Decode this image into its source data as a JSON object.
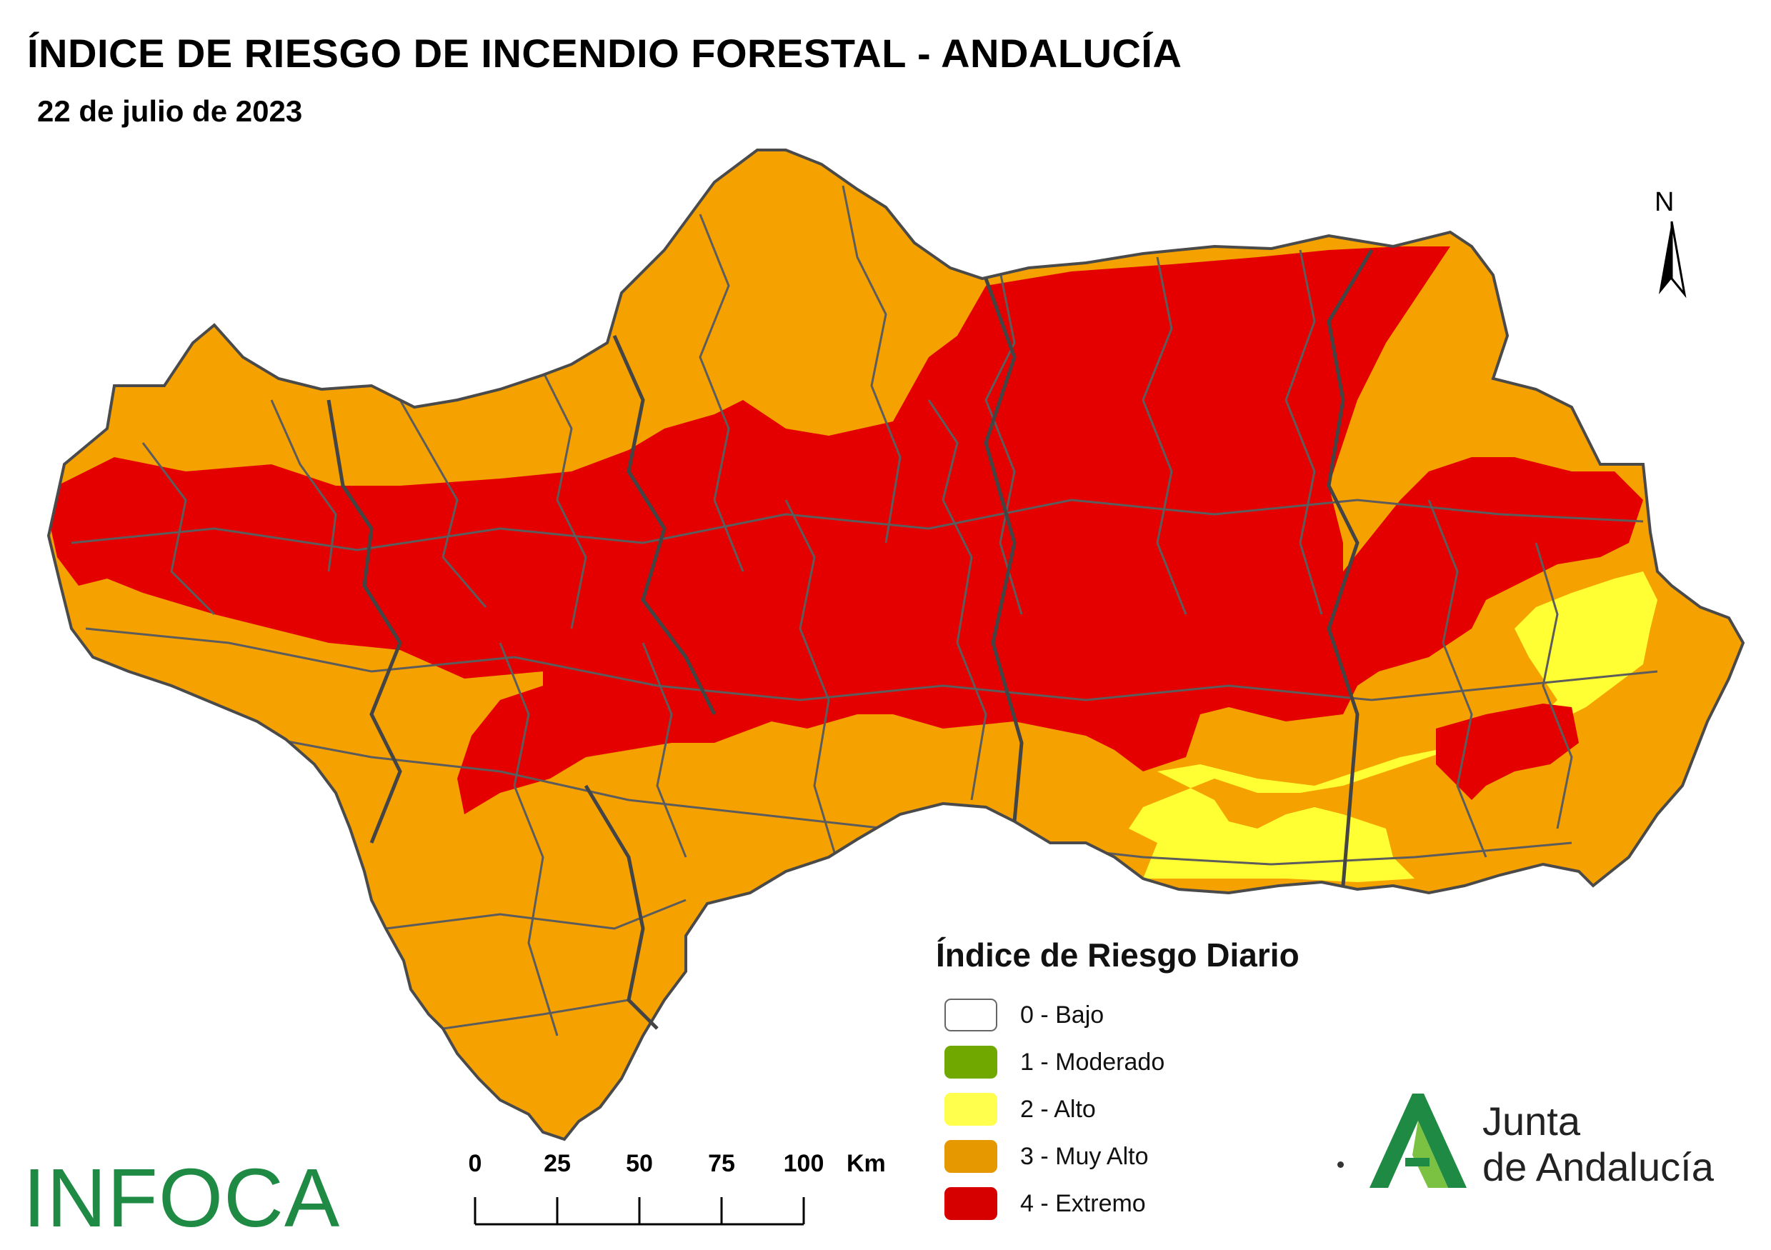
{
  "header": {
    "title": "ÍNDICE DE RIESGO DE INCENDIO FORESTAL - ANDALUCÍA",
    "date": "22 de julio de 2023"
  },
  "north_arrow": {
    "label": "N"
  },
  "legend": {
    "title": "Índice de Riesgo Diario",
    "items": [
      {
        "label": "0 - Bajo",
        "color": "#ffffff"
      },
      {
        "label": "1 - Moderado",
        "color": "#70a800"
      },
      {
        "label": "2 - Alto",
        "color": "#ffff4d"
      },
      {
        "label": "3 - Muy Alto",
        "color": "#e69800"
      },
      {
        "label": "4 - Extremo",
        "color": "#d60000"
      }
    ]
  },
  "scale_bar": {
    "ticks": [
      "0",
      "25",
      "50",
      "75",
      "100"
    ],
    "unit": "Km"
  },
  "logos": {
    "infoca": "INFOCA",
    "junta_line1": "Junta",
    "junta_line2": "de Andalucía"
  },
  "colors": {
    "extreme": "#e50000",
    "very_high": "#f5a200",
    "high": "#ffff33",
    "moderate": "#70a800",
    "boundary": "#555555",
    "brand_green": "#1f8a43"
  }
}
